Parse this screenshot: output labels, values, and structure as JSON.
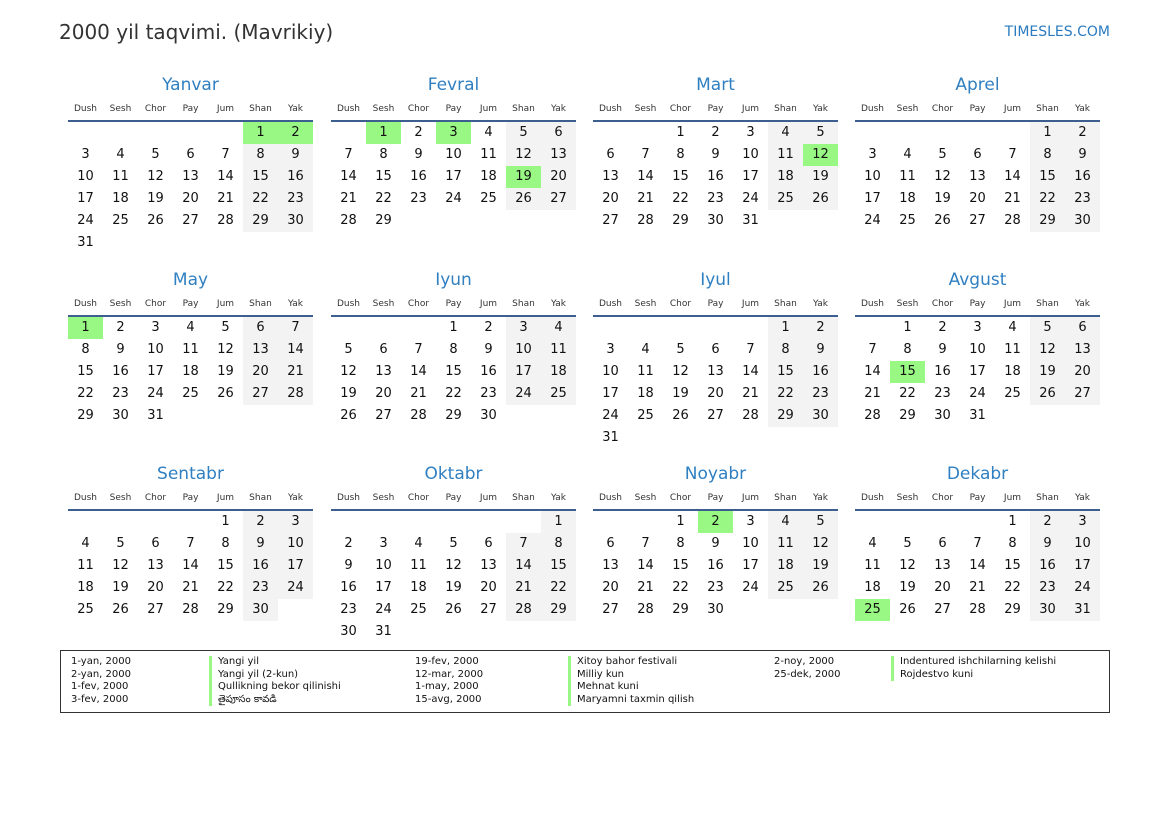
{
  "header": {
    "title": "2000 yil taqvimi. (Mavrikiy)",
    "brand": "TIMESLES.COM"
  },
  "year": 2000,
  "weekdays": [
    "Dush",
    "Sesh",
    "Chor",
    "Pay",
    "Jum",
    "Shan",
    "Yak"
  ],
  "months": [
    "Yanvar",
    "Fevral",
    "Mart",
    "Aprel",
    "May",
    "Iyun",
    "Iyul",
    "Avgust",
    "Sentabr",
    "Oktabr",
    "Noyabr",
    "Dekabr"
  ],
  "colors": {
    "accent": "#2f7fc1",
    "holiday": "#98f883",
    "weekend": "#f3f3f3",
    "rule": "#3c5f8f"
  },
  "holidays": [
    {
      "month": 1,
      "day": 1,
      "date": "1-yan, 2000",
      "name": "Yangi yil"
    },
    {
      "month": 1,
      "day": 2,
      "date": "2-yan, 2000",
      "name": "Yangi yil (2-kun)"
    },
    {
      "month": 2,
      "day": 1,
      "date": "1-fev, 2000",
      "name": "Qullikning bekor qilinishi"
    },
    {
      "month": 2,
      "day": 3,
      "date": "3-fev, 2000",
      "name": "తైపూసం కావడి"
    },
    {
      "month": 2,
      "day": 19,
      "date": "19-fev, 2000",
      "name": "Xitoy bahor festivali"
    },
    {
      "month": 3,
      "day": 12,
      "date": "12-mar, 2000",
      "name": "Milliy kun"
    },
    {
      "month": 5,
      "day": 1,
      "date": "1-may, 2000",
      "name": "Mehnat kuni"
    },
    {
      "month": 8,
      "day": 15,
      "date": "15-avg, 2000",
      "name": "Maryamni taxmin qilish"
    },
    {
      "month": 11,
      "day": 2,
      "date": "2-noy, 2000",
      "name": "Indentured ishchilarning kelishi"
    },
    {
      "month": 12,
      "day": 25,
      "date": "25-dek, 2000",
      "name": "Rojdestvo kuni"
    }
  ]
}
